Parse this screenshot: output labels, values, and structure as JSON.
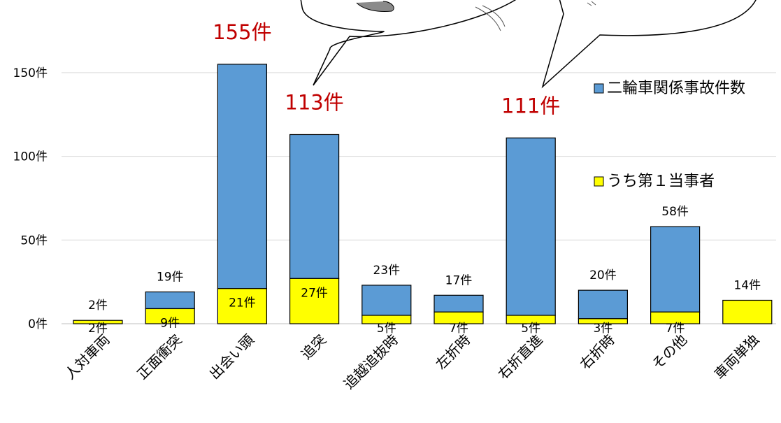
{
  "chart_data": {
    "type": "bar",
    "stacked": true,
    "categories": [
      "人対車両",
      "正面衝突",
      "出会い頭",
      "追突",
      "追越追抜時",
      "左折時",
      "右折直進",
      "右折時",
      "その他",
      "車両単独"
    ],
    "series": [
      {
        "name": "二輪車関係事故件数",
        "values": [
          2,
          19,
          155,
          113,
          23,
          17,
          111,
          20,
          58,
          14
        ],
        "color": "#5b9bd5"
      },
      {
        "name": "うち第１当事者",
        "values": [
          2,
          9,
          21,
          27,
          5,
          7,
          5,
          3,
          7,
          14
        ],
        "color": "#ffff00"
      }
    ],
    "total_labels": [
      "2件",
      "19件",
      "155件",
      "113件",
      "23件",
      "17件",
      "111件",
      "20件",
      "58件",
      "14件"
    ],
    "first_party_labels": [
      "2件",
      "9件",
      "21件",
      "27件",
      "5件",
      "7件",
      "5件",
      "3件",
      "7件",
      ""
    ],
    "highlight_totals": [
      2,
      3,
      6
    ],
    "yticks": [
      0,
      50,
      100,
      150
    ],
    "ytick_labels": [
      "0件",
      "50件",
      "100件",
      "150件"
    ],
    "ylim": [
      0,
      170
    ],
    "legend_position": "top-right"
  }
}
